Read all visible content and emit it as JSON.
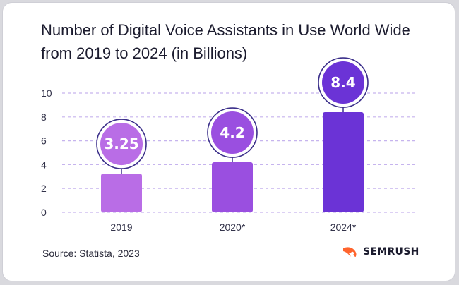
{
  "title_line1": "Number of Digital Voice Assistants in Use World Wide",
  "title_line2": "from 2019 to 2024 (in Billions)",
  "source": "Source: Statista, 2023",
  "brand": "SEMRUSH",
  "colors": {
    "bar_2019": "#b96de6",
    "bar_2020": "#9a4fe0",
    "bar_2024": "#6b33d6",
    "grid": "#c6b4ee",
    "ring": "#3b2f8a",
    "brand_orange": "#ff642d"
  },
  "chart_data": {
    "type": "bar",
    "categories": [
      "2019",
      "2020*",
      "2024*"
    ],
    "values": [
      3.25,
      4.2,
      8.4
    ],
    "value_labels": [
      "3.25",
      "4.2",
      "8.4"
    ],
    "title": "Number of Digital Voice Assistants in Use World Wide from 2019 to 2024 (in Billions)",
    "xlabel": "",
    "ylabel": "",
    "ylim": [
      0,
      10
    ],
    "yticks": [
      0,
      2,
      4,
      6,
      8,
      10
    ],
    "grid": true,
    "grid_style": "dashed"
  }
}
